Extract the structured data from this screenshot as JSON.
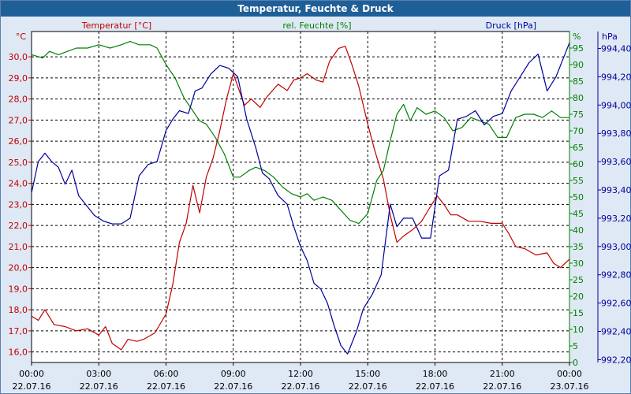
{
  "window": {
    "title": "Temperatur, Feuchte & Druck"
  },
  "chart_data": {
    "type": "line",
    "title": "Temperatur, Feuchte & Druck",
    "x_range_hours": [
      0,
      24
    ],
    "x_ticks": [
      {
        "h": 0,
        "time": "00:00",
        "date": "22.07.16"
      },
      {
        "h": 3,
        "time": "03:00",
        "date": "22.07.16"
      },
      {
        "h": 6,
        "time": "06:00",
        "date": "22.07.16"
      },
      {
        "h": 9,
        "time": "09:00",
        "date": "22.07.16"
      },
      {
        "h": 12,
        "time": "12:00",
        "date": "22.07.16"
      },
      {
        "h": 15,
        "time": "15:00",
        "date": "22.07.16"
      },
      {
        "h": 18,
        "time": "18:00",
        "date": "22.07.16"
      },
      {
        "h": 21,
        "time": "21:00",
        "date": "22.07.16"
      },
      {
        "h": 24,
        "time": "00:00",
        "date": "23.07.16"
      }
    ],
    "axes": {
      "temperature": {
        "label": "Temperatur [°C]",
        "unit": "°C",
        "color": "#c00000",
        "range": [
          15.5,
          31.2
        ],
        "ticks": [
          "16,0",
          "17,0",
          "18,0",
          "19,0",
          "20,0",
          "21,0",
          "22,0",
          "23,0",
          "24,0",
          "25,0",
          "26,0",
          "27,0",
          "28,0",
          "29,0",
          "30,0"
        ]
      },
      "humidity": {
        "label": "rel. Feuchte [%]",
        "unit": "%",
        "color": "#008000",
        "range": [
          0,
          100
        ],
        "ticks": [
          "0",
          "5",
          "10",
          "15",
          "20",
          "25",
          "30",
          "35",
          "40",
          "45",
          "50",
          "55",
          "60",
          "65",
          "70",
          "75",
          "80",
          "85",
          "90",
          "95"
        ]
      },
      "pressure": {
        "label": "Druck [hPa]",
        "unit": "hPa",
        "color": "#000099",
        "range": [
          992.18,
          994.52
        ],
        "ticks": [
          "992,20",
          "992,40",
          "992,60",
          "992,80",
          "993,00",
          "993,20",
          "993,40",
          "993,60",
          "993,80",
          "994,00",
          "994,20",
          "994,40"
        ]
      }
    },
    "series": [
      {
        "name": "Temperatur",
        "axis": "temperature",
        "color": "#c00000",
        "points": [
          [
            0,
            17.7
          ],
          [
            0.3,
            17.5
          ],
          [
            0.6,
            18.0
          ],
          [
            1.0,
            17.3
          ],
          [
            1.5,
            17.2
          ],
          [
            2.0,
            17.0
          ],
          [
            2.5,
            17.1
          ],
          [
            3.0,
            16.8
          ],
          [
            3.3,
            17.2
          ],
          [
            3.6,
            16.4
          ],
          [
            4.0,
            16.1
          ],
          [
            4.3,
            16.6
          ],
          [
            4.7,
            16.5
          ],
          [
            5.0,
            16.6
          ],
          [
            5.5,
            16.9
          ],
          [
            6.0,
            17.8
          ],
          [
            6.3,
            19.2
          ],
          [
            6.6,
            21.2
          ],
          [
            6.9,
            22.1
          ],
          [
            7.2,
            23.9
          ],
          [
            7.5,
            22.6
          ],
          [
            7.8,
            24.3
          ],
          [
            8.1,
            25.2
          ],
          [
            8.4,
            26.5
          ],
          [
            8.7,
            28.0
          ],
          [
            9.0,
            29.2
          ],
          [
            9.2,
            28.6
          ],
          [
            9.5,
            27.7
          ],
          [
            9.8,
            28.0
          ],
          [
            10.2,
            27.6
          ],
          [
            10.5,
            28.1
          ],
          [
            11.0,
            28.7
          ],
          [
            11.4,
            28.4
          ],
          [
            11.7,
            28.9
          ],
          [
            12.0,
            29.0
          ],
          [
            12.3,
            29.2
          ],
          [
            12.7,
            28.9
          ],
          [
            13.0,
            28.8
          ],
          [
            13.3,
            29.8
          ],
          [
            13.7,
            30.4
          ],
          [
            14.0,
            30.5
          ],
          [
            14.3,
            29.6
          ],
          [
            14.6,
            28.6
          ],
          [
            15.0,
            26.8
          ],
          [
            15.3,
            25.6
          ],
          [
            15.7,
            24.2
          ],
          [
            16.0,
            22.5
          ],
          [
            16.3,
            21.2
          ],
          [
            16.6,
            21.5
          ],
          [
            17.0,
            21.8
          ],
          [
            17.4,
            22.2
          ],
          [
            17.8,
            22.9
          ],
          [
            18.1,
            23.4
          ],
          [
            18.4,
            23.0
          ],
          [
            18.7,
            22.5
          ],
          [
            19.0,
            22.5
          ],
          [
            19.5,
            22.2
          ],
          [
            20.0,
            22.2
          ],
          [
            20.5,
            22.1
          ],
          [
            21.0,
            22.1
          ],
          [
            21.3,
            21.6
          ],
          [
            21.6,
            21.0
          ],
          [
            22.0,
            20.9
          ],
          [
            22.5,
            20.6
          ],
          [
            23.0,
            20.7
          ],
          [
            23.3,
            20.2
          ],
          [
            23.6,
            20.0
          ],
          [
            24.0,
            20.4
          ]
        ]
      },
      {
        "name": "rel. Feuchte",
        "axis": "humidity",
        "color": "#008000",
        "points": [
          [
            0,
            93
          ],
          [
            0.5,
            92
          ],
          [
            0.8,
            94
          ],
          [
            1.2,
            93
          ],
          [
            1.6,
            94
          ],
          [
            2.0,
            95
          ],
          [
            2.5,
            95
          ],
          [
            3.0,
            96
          ],
          [
            3.5,
            95
          ],
          [
            4.0,
            96
          ],
          [
            4.4,
            97
          ],
          [
            4.8,
            96
          ],
          [
            5.3,
            96
          ],
          [
            5.6,
            95
          ],
          [
            6.0,
            90
          ],
          [
            6.4,
            86
          ],
          [
            6.8,
            80
          ],
          [
            7.2,
            76
          ],
          [
            7.5,
            73
          ],
          [
            7.8,
            72
          ],
          [
            8.2,
            68
          ],
          [
            8.6,
            63
          ],
          [
            9.0,
            56
          ],
          [
            9.3,
            56
          ],
          [
            9.7,
            58
          ],
          [
            10.0,
            59
          ],
          [
            10.4,
            58
          ],
          [
            10.8,
            56
          ],
          [
            11.2,
            53
          ],
          [
            11.6,
            51
          ],
          [
            12.0,
            50
          ],
          [
            12.3,
            51
          ],
          [
            12.6,
            49
          ],
          [
            13.0,
            50
          ],
          [
            13.4,
            49
          ],
          [
            13.8,
            46
          ],
          [
            14.2,
            43
          ],
          [
            14.6,
            42
          ],
          [
            15.0,
            45
          ],
          [
            15.4,
            55
          ],
          [
            15.7,
            58
          ],
          [
            16.0,
            67
          ],
          [
            16.3,
            75
          ],
          [
            16.6,
            78
          ],
          [
            16.9,
            73
          ],
          [
            17.2,
            77
          ],
          [
            17.6,
            75
          ],
          [
            18.0,
            76
          ],
          [
            18.4,
            74
          ],
          [
            18.8,
            70
          ],
          [
            19.2,
            71
          ],
          [
            19.6,
            74
          ],
          [
            20.0,
            73
          ],
          [
            20.4,
            72
          ],
          [
            20.8,
            68
          ],
          [
            21.2,
            68
          ],
          [
            21.6,
            74
          ],
          [
            22.0,
            75
          ],
          [
            22.4,
            75
          ],
          [
            22.8,
            74
          ],
          [
            23.2,
            76
          ],
          [
            23.6,
            74
          ],
          [
            24.0,
            74
          ]
        ]
      },
      {
        "name": "Druck",
        "axis": "pressure",
        "color": "#000099",
        "points": [
          [
            0,
            993.38
          ],
          [
            0.3,
            993.6
          ],
          [
            0.6,
            993.66
          ],
          [
            0.9,
            993.6
          ],
          [
            1.2,
            993.56
          ],
          [
            1.5,
            993.44
          ],
          [
            1.8,
            993.54
          ],
          [
            2.1,
            993.36
          ],
          [
            2.4,
            993.3
          ],
          [
            2.8,
            993.22
          ],
          [
            3.2,
            993.18
          ],
          [
            3.6,
            993.16
          ],
          [
            4.0,
            993.16
          ],
          [
            4.4,
            993.2
          ],
          [
            4.8,
            993.5
          ],
          [
            5.2,
            993.58
          ],
          [
            5.6,
            993.6
          ],
          [
            6.0,
            993.82
          ],
          [
            6.3,
            993.9
          ],
          [
            6.6,
            993.96
          ],
          [
            7.0,
            993.94
          ],
          [
            7.3,
            994.1
          ],
          [
            7.6,
            994.12
          ],
          [
            8.0,
            994.22
          ],
          [
            8.4,
            994.28
          ],
          [
            8.8,
            994.26
          ],
          [
            9.2,
            994.2
          ],
          [
            9.6,
            993.9
          ],
          [
            10.0,
            993.7
          ],
          [
            10.3,
            993.52
          ],
          [
            10.6,
            993.48
          ],
          [
            11.0,
            993.36
          ],
          [
            11.4,
            993.3
          ],
          [
            11.7,
            993.14
          ],
          [
            12.0,
            993.0
          ],
          [
            12.3,
            992.9
          ],
          [
            12.6,
            992.74
          ],
          [
            12.9,
            992.7
          ],
          [
            13.2,
            992.6
          ],
          [
            13.5,
            992.44
          ],
          [
            13.8,
            992.3
          ],
          [
            14.1,
            992.24
          ],
          [
            14.5,
            992.4
          ],
          [
            14.8,
            992.56
          ],
          [
            15.2,
            992.66
          ],
          [
            15.6,
            992.8
          ],
          [
            16.0,
            993.3
          ],
          [
            16.3,
            993.14
          ],
          [
            16.6,
            993.2
          ],
          [
            17.0,
            993.2
          ],
          [
            17.4,
            993.06
          ],
          [
            17.8,
            993.06
          ],
          [
            18.2,
            993.5
          ],
          [
            18.6,
            993.54
          ],
          [
            19.0,
            993.9
          ],
          [
            19.4,
            993.92
          ],
          [
            19.8,
            993.96
          ],
          [
            20.2,
            993.86
          ],
          [
            20.6,
            993.92
          ],
          [
            21.0,
            993.94
          ],
          [
            21.4,
            994.1
          ],
          [
            21.8,
            994.2
          ],
          [
            22.2,
            994.3
          ],
          [
            22.6,
            994.36
          ],
          [
            23.0,
            994.1
          ],
          [
            23.4,
            994.2
          ],
          [
            23.8,
            994.36
          ],
          [
            24.0,
            994.44
          ]
        ]
      }
    ]
  }
}
